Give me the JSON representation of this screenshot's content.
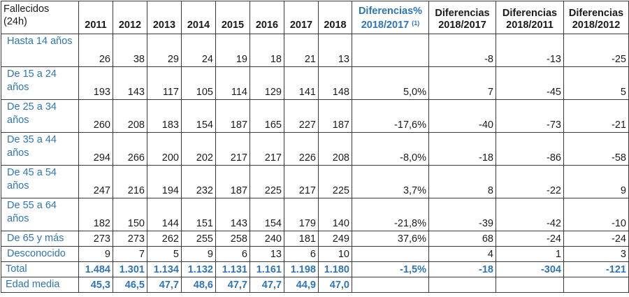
{
  "header": {
    "first": [
      "Fallecidos",
      "(24h)"
    ],
    "years": [
      "2011",
      "2012",
      "2013",
      "2014",
      "2015",
      "2016",
      "2017",
      "2018"
    ],
    "diffs": [
      {
        "line1": "Diferencias%",
        "line2": "2018/2017",
        "note": "(1)"
      },
      {
        "line1": "Diferencias",
        "line2": "2018/2017"
      },
      {
        "line1": "Diferencias",
        "line2": "2018/2011"
      },
      {
        "line1": "Diferencias",
        "line2": "2018/2012"
      }
    ]
  },
  "rows": [
    {
      "label": "Hasta 14 años",
      "values": [
        "26",
        "38",
        "29",
        "24",
        "19",
        "18",
        "21",
        "13"
      ],
      "diffs": [
        "",
        "-8",
        "-13",
        "-25"
      ]
    },
    {
      "label": "De 15 a 24 años",
      "values": [
        "193",
        "143",
        "117",
        "105",
        "114",
        "129",
        "141",
        "148"
      ],
      "diffs": [
        "5,0%",
        "7",
        "-45",
        "5"
      ]
    },
    {
      "label": "De 25 a 34 años",
      "values": [
        "260",
        "208",
        "183",
        "154",
        "187",
        "165",
        "227",
        "187"
      ],
      "diffs": [
        "-17,6%",
        "-40",
        "-73",
        "-21"
      ]
    },
    {
      "label": "De 35 a 44 años",
      "values": [
        "294",
        "266",
        "200",
        "202",
        "217",
        "217",
        "226",
        "208"
      ],
      "diffs": [
        "-8,0%",
        "-18",
        "-86",
        "-58"
      ]
    },
    {
      "label": "De 45 a 54 años",
      "values": [
        "247",
        "216",
        "194",
        "232",
        "187",
        "225",
        "217",
        "225"
      ],
      "diffs": [
        "3,7%",
        "8",
        "-22",
        "9"
      ]
    },
    {
      "label": "De 55 a 64 años",
      "values": [
        "182",
        "150",
        "144",
        "151",
        "143",
        "154",
        "179",
        "140"
      ],
      "diffs": [
        "-21,8%",
        "-39",
        "-42",
        "-10"
      ]
    },
    {
      "label": "De 65 y más",
      "values": [
        "273",
        "273",
        "262",
        "255",
        "258",
        "240",
        "181",
        "249"
      ],
      "diffs": [
        "37,6%",
        "68",
        "-24",
        "-24"
      ]
    },
    {
      "label": "Desconocido",
      "values": [
        "9",
        "7",
        "5",
        "9",
        "6",
        "13",
        "6",
        "10"
      ],
      "diffs": [
        "",
        "4",
        "1",
        "3"
      ]
    }
  ],
  "total": {
    "label": "Total",
    "values": [
      "1.484",
      "1.301",
      "1.134",
      "1.132",
      "1.131",
      "1.161",
      "1.198",
      "1.180"
    ],
    "diffs": [
      "-1,5%",
      "-18",
      "-304",
      "-121"
    ]
  },
  "mean": {
    "label": "Edad media",
    "values": [
      "45,3",
      "46,5",
      "47,7",
      "48,6",
      "47,7",
      "47,7",
      "44,9",
      "47,0"
    ],
    "diffs": [
      "",
      "",
      "",
      ""
    ]
  }
}
